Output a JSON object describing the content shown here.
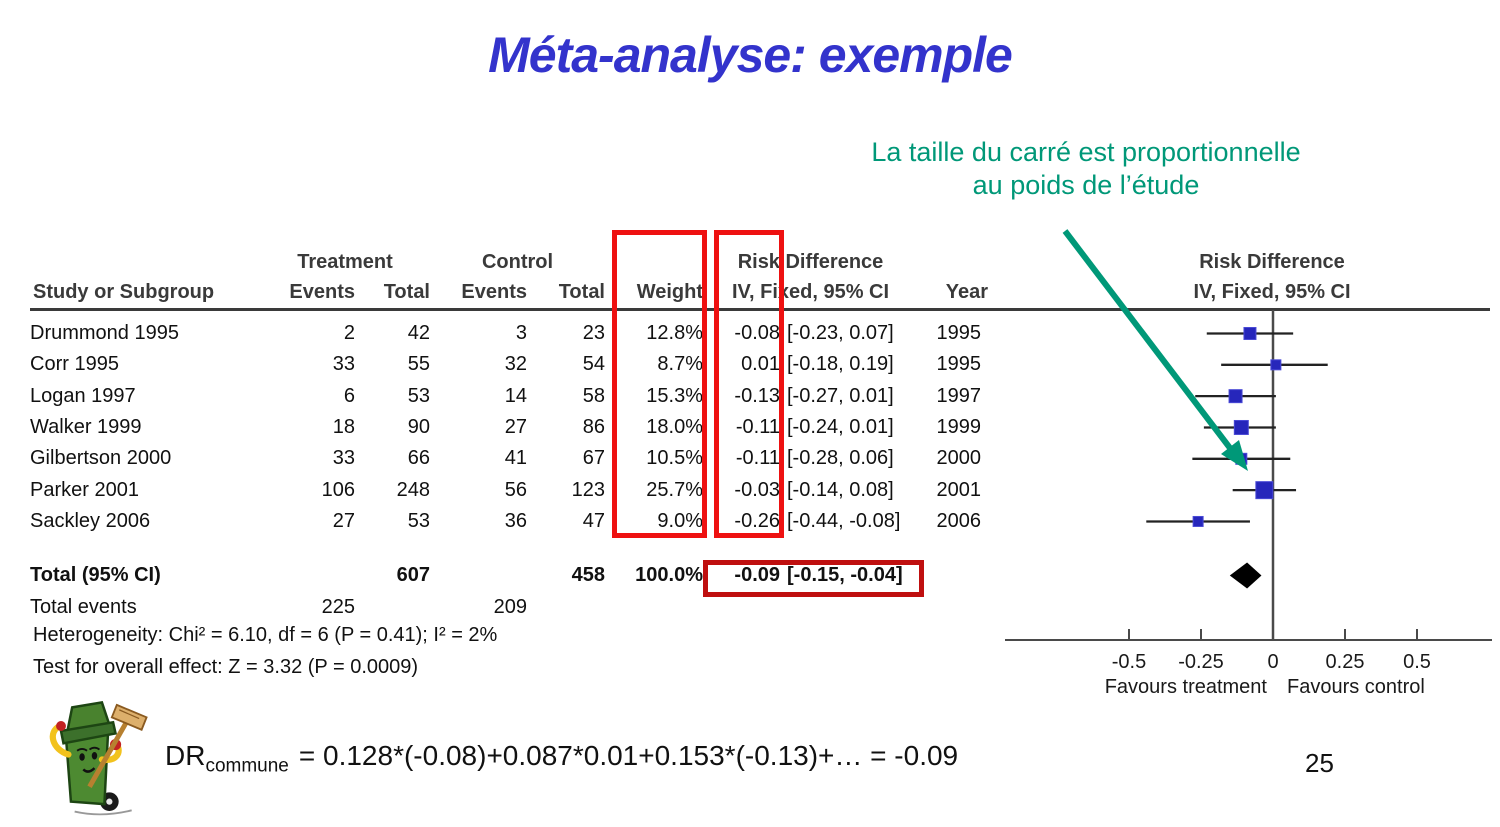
{
  "title": "Méta-analyse: exemple",
  "annotation": {
    "line1": "La taille du carré est proportionnelle",
    "line2": "au poids de l’étude"
  },
  "table": {
    "col_headers": {
      "study": "Study or Subgroup",
      "treatment_group": "Treatment",
      "control_group": "Control",
      "events": "Events",
      "total": "Total",
      "weight": "Weight",
      "risk_difference_line1": "Risk Difference",
      "risk_difference_line2": "IV, Fixed, 95% CI",
      "year": "Year"
    },
    "plot_headers": {
      "line1": "Risk Difference",
      "line2": "IV, Fixed, 95% CI"
    }
  },
  "chart_data": {
    "type": "scatter",
    "subtype": "forest-plot",
    "effect_measure": "Risk Difference IV, Fixed, 95% CI",
    "studies": [
      {
        "study": "Drummond 1995",
        "t_events": 2,
        "t_total": 42,
        "c_events": 3,
        "c_total": 23,
        "weight": "12.8%",
        "weight_pct": 12.8,
        "rd": -0.08,
        "ci_lo": -0.23,
        "ci_hi": 0.07,
        "estimate_label": "-0.08",
        "ci_label": "[-0.23, 0.07]",
        "year": 1995
      },
      {
        "study": "Corr 1995",
        "t_events": 33,
        "t_total": 55,
        "c_events": 32,
        "c_total": 54,
        "weight": "8.7%",
        "weight_pct": 8.7,
        "rd": 0.01,
        "ci_lo": -0.18,
        "ci_hi": 0.19,
        "estimate_label": "0.01",
        "ci_label": "[-0.18, 0.19]",
        "year": 1995
      },
      {
        "study": "Logan 1997",
        "t_events": 6,
        "t_total": 53,
        "c_events": 14,
        "c_total": 58,
        "weight": "15.3%",
        "weight_pct": 15.3,
        "rd": -0.13,
        "ci_lo": -0.27,
        "ci_hi": 0.01,
        "estimate_label": "-0.13",
        "ci_label": "[-0.27, 0.01]",
        "year": 1997
      },
      {
        "study": "Walker 1999",
        "t_events": 18,
        "t_total": 90,
        "c_events": 27,
        "c_total": 86,
        "weight": "18.0%",
        "weight_pct": 18.0,
        "rd": -0.11,
        "ci_lo": -0.24,
        "ci_hi": 0.01,
        "estimate_label": "-0.11",
        "ci_label": "[-0.24, 0.01]",
        "year": 1999
      },
      {
        "study": "Gilbertson 2000",
        "t_events": 33,
        "t_total": 66,
        "c_events": 41,
        "c_total": 67,
        "weight": "10.5%",
        "weight_pct": 10.5,
        "rd": -0.11,
        "ci_lo": -0.28,
        "ci_hi": 0.06,
        "estimate_label": "-0.11",
        "ci_label": "[-0.28, 0.06]",
        "year": 2000
      },
      {
        "study": "Parker 2001",
        "t_events": 106,
        "t_total": 248,
        "c_events": 56,
        "c_total": 123,
        "weight": "25.7%",
        "weight_pct": 25.7,
        "rd": -0.03,
        "ci_lo": -0.14,
        "ci_hi": 0.08,
        "estimate_label": "-0.03",
        "ci_label": "[-0.14, 0.08]",
        "year": 2001
      },
      {
        "study": "Sackley 2006",
        "t_events": 27,
        "t_total": 53,
        "c_events": 36,
        "c_total": 47,
        "weight": "9.0%",
        "weight_pct": 9.0,
        "rd": -0.26,
        "ci_lo": -0.44,
        "ci_hi": -0.08,
        "estimate_label": "-0.26",
        "ci_label": "[-0.44, -0.08]",
        "year": 2006
      }
    ],
    "total": {
      "label": "Total (95% CI)",
      "t_total": 607,
      "c_total": 458,
      "weight": "100.0%",
      "rd": -0.09,
      "ci_lo": -0.15,
      "ci_hi": -0.04,
      "estimate_label": "-0.09",
      "ci_label": "[-0.15, -0.04]"
    },
    "total_events": {
      "label": "Total events",
      "treatment": 225,
      "control": 209
    },
    "heterogeneity": "Heterogeneity: Chi² = 6.10, df = 6 (P = 0.41); I² = 2%",
    "overall_effect": "Test for overall effect: Z = 3.32 (P = 0.0009)",
    "axis": {
      "ticks": [
        -0.5,
        -0.25,
        0,
        0.25,
        0.5
      ],
      "tick_labels": [
        "-0.5",
        "-0.25",
        "0",
        "0.25",
        "0.5"
      ],
      "xlim": [
        -0.77,
        0.79
      ],
      "left_label": "Favours treatment",
      "right_label": "Favours control",
      "grid": false
    }
  },
  "formula": {
    "prefix": "DR",
    "subscript": "commune",
    "body": "= 0.128*(-0.08)+0.087*0.01+0.153*(-0.13)+… = -0.09"
  },
  "page_number": "25",
  "colors": {
    "title_blue": "#3333cc",
    "annotation_teal": "#009878",
    "highlight_red": "#ee1111",
    "highlight_dark_red": "#bf0f0f",
    "square_blue": "#2626bb",
    "line_gray": "#4a4a4a"
  }
}
